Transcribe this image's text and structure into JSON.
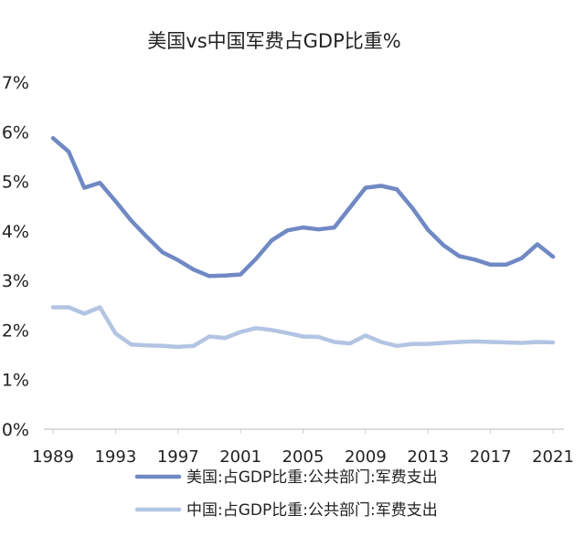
{
  "chart_data": {
    "type": "line",
    "title": "美国vs中国军费占GDP比重%",
    "xlabel": "",
    "ylabel": "",
    "x": [
      1989,
      1990,
      1991,
      1992,
      1993,
      1994,
      1995,
      1996,
      1997,
      1998,
      1999,
      2000,
      2001,
      2002,
      2003,
      2004,
      2005,
      2006,
      2007,
      2008,
      2009,
      2010,
      2011,
      2012,
      2013,
      2014,
      2015,
      2016,
      2017,
      2018,
      2019,
      2020,
      2021
    ],
    "xticks": [
      "1989",
      "1993",
      "1997",
      "2001",
      "2005",
      "2009",
      "2013",
      "2017",
      "2021"
    ],
    "xtick_values": [
      1989,
      1993,
      1997,
      2001,
      2005,
      2009,
      2013,
      2017,
      2021
    ],
    "xlim": [
      1989,
      2021
    ],
    "ylim": [
      0,
      7
    ],
    "yticks": [
      "0%",
      "1%",
      "2%",
      "3%",
      "4%",
      "5%",
      "6%",
      "7%"
    ],
    "ytick_values": [
      0,
      1,
      2,
      3,
      4,
      5,
      6,
      7
    ],
    "grid": false,
    "legend_position": "bottom",
    "series": [
      {
        "name": "美国:占GDP比重:公共部门:军费支出",
        "color": "#7089c4",
        "values": [
          5.87,
          5.6,
          4.87,
          4.97,
          4.6,
          4.21,
          3.88,
          3.57,
          3.41,
          3.22,
          3.09,
          3.1,
          3.12,
          3.44,
          3.81,
          4.01,
          4.07,
          4.03,
          4.07,
          4.47,
          4.87,
          4.91,
          4.84,
          4.46,
          4.02,
          3.71,
          3.49,
          3.42,
          3.32,
          3.32,
          3.45,
          3.73,
          3.48
        ]
      },
      {
        "name": "中国:占GDP比重:公共部门:军费支出",
        "color": "#b3c4e3",
        "values": [
          2.46,
          2.46,
          2.33,
          2.46,
          1.93,
          1.71,
          1.69,
          1.68,
          1.66,
          1.68,
          1.87,
          1.84,
          1.96,
          2.04,
          2.0,
          1.94,
          1.87,
          1.86,
          1.76,
          1.73,
          1.89,
          1.76,
          1.68,
          1.72,
          1.72,
          1.74,
          1.76,
          1.77,
          1.76,
          1.75,
          1.74,
          1.76,
          1.75
        ]
      }
    ]
  }
}
